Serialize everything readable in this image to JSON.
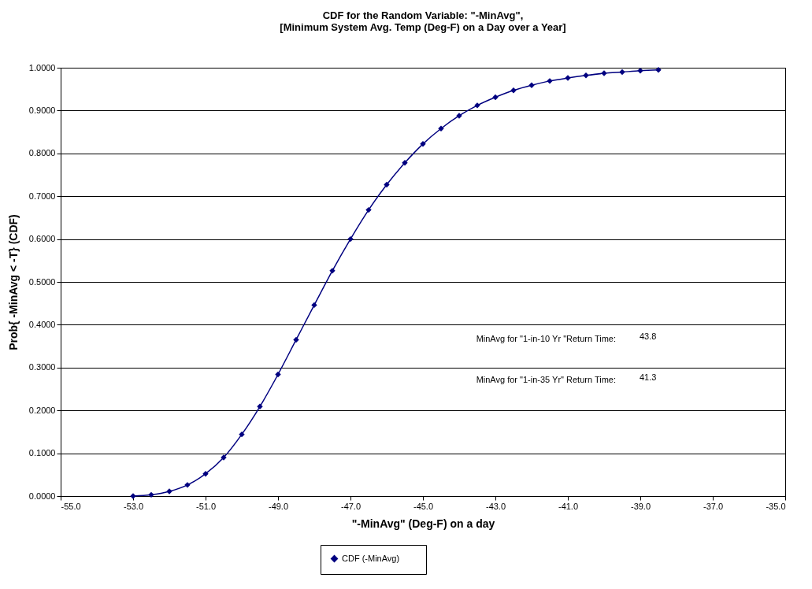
{
  "chart_data": {
    "type": "line",
    "title": "CDF for the Random Variable:  \"-MinAvg\",\n[Minimum System Avg. Temp (Deg-F) on a Day over a Year]",
    "xlabel": "\"-MinAvg\" (Deg-F) on a day",
    "ylabel": "Prob{ -MinAvg < -T} (CDF)",
    "x": [
      -53,
      -52.5,
      -52,
      -51.5,
      -51,
      -50.5,
      -50,
      -49.5,
      -49,
      -48.5,
      -48,
      -47.5,
      -47,
      -46.5,
      -46,
      -45.5,
      -45,
      -44.5,
      -44,
      -43.5,
      -43,
      -42.5,
      -42,
      -41.5,
      -41,
      -40.5,
      -40,
      -39.5,
      -39,
      -38.5
    ],
    "series": [
      {
        "name": "CDF        (-MinAvg)",
        "color": "#000080",
        "values": [
          0.0,
          0.003,
          0.011,
          0.026,
          0.052,
          0.09,
          0.144,
          0.209,
          0.284,
          0.365,
          0.446,
          0.526,
          0.6,
          0.668,
          0.727,
          0.778,
          0.822,
          0.858,
          0.888,
          0.912,
          0.931,
          0.947,
          0.959,
          0.969,
          0.976,
          0.982,
          0.987,
          0.99,
          0.993,
          0.995
        ]
      }
    ],
    "xlim": [
      -55,
      -35
    ],
    "xticks": [
      {
        "value": -55,
        "label": "-55.0"
      },
      {
        "value": -53,
        "label": "-53.0"
      },
      {
        "value": -51,
        "label": "-51.0"
      },
      {
        "value": -49,
        "label": "-49.0"
      },
      {
        "value": -47,
        "label": "-47.0"
      },
      {
        "value": -45,
        "label": "-45.0"
      },
      {
        "value": -43,
        "label": "-43.0"
      },
      {
        "value": -41,
        "label": "-41.0"
      },
      {
        "value": -39,
        "label": "-39.0"
      },
      {
        "value": -37,
        "label": "-37.0"
      },
      {
        "value": -35,
        "label": "-35.0"
      }
    ],
    "ylim": [
      0,
      1
    ],
    "yticks": [
      {
        "value": 0,
        "label": "0.0000"
      },
      {
        "value": 0.1,
        "label": "0.1000"
      },
      {
        "value": 0.2,
        "label": "0.2000"
      },
      {
        "value": 0.3,
        "label": "0.3000"
      },
      {
        "value": 0.4,
        "label": "0.4000"
      },
      {
        "value": 0.5,
        "label": "0.5000"
      },
      {
        "value": 0.6,
        "label": "0.6000"
      },
      {
        "value": 0.7,
        "label": "0.7000"
      },
      {
        "value": 0.8,
        "label": "0.8000"
      },
      {
        "value": 0.9,
        "label": "0.9000"
      },
      {
        "value": 1,
        "label": "1.0000"
      }
    ],
    "annotations": [
      "MinAvg for \"1-in-10 Yr  \"Return  Time:",
      "43.8",
      "MinAvg for \"1-in-35 Yr\" Return Time:",
      "41.3"
    ],
    "grid": "y",
    "legend": "bottom",
    "marker": "diamond",
    "line_style": "solid"
  }
}
